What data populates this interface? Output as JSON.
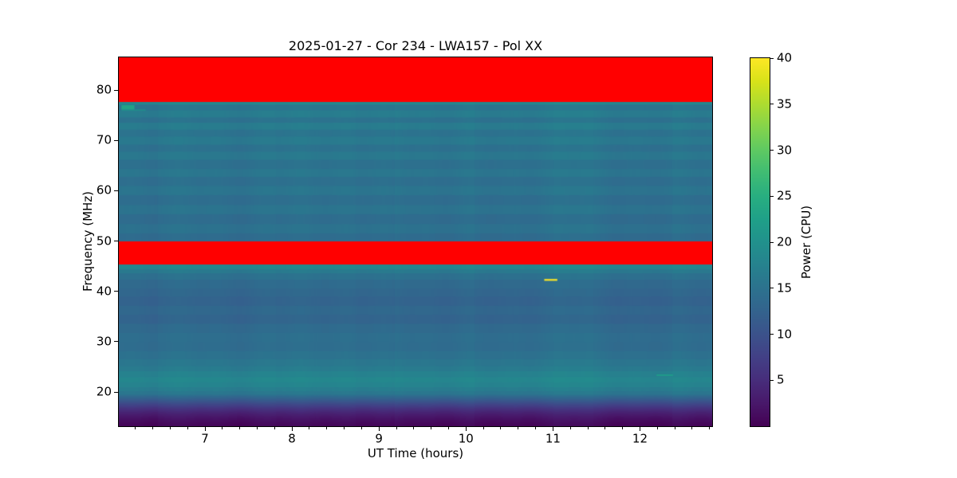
{
  "figure": {
    "background": "#ffffff"
  },
  "chart_data": {
    "type": "heatmap",
    "title": "2025-01-27 - Cor 234 - LWA157 - Pol XX",
    "xlabel": "UT Time (hours)",
    "ylabel": "Frequency (MHz)",
    "x_unit": "hours",
    "y_unit": "MHz",
    "x_range": [
      6.01,
      12.83
    ],
    "y_range": [
      13.2,
      86.5
    ],
    "x_major_ticks": [
      7,
      8,
      9,
      10,
      11,
      12
    ],
    "x_minor_tick_step": 0.2,
    "y_major_ticks": [
      20,
      30,
      40,
      50,
      60,
      70,
      80
    ],
    "grid": false,
    "legend": "none",
    "colorbar": {
      "label": "Power (CPU)",
      "ticks": [
        5,
        10,
        15,
        20,
        25,
        30,
        35,
        40
      ],
      "vmin": 0,
      "vmax": 40,
      "colormap": "viridis",
      "stops": [
        "#440154",
        "#48186a",
        "#472d7b",
        "#424086",
        "#3b528b",
        "#33638d",
        "#2c728e",
        "#26828e",
        "#21918c",
        "#1fa088",
        "#28ae80",
        "#3fbc73",
        "#5ec962",
        "#84d44b",
        "#addc30",
        "#d8e219",
        "#fde725"
      ]
    },
    "saturated_color": "#ff0000",
    "saturated_bands_mhz": [
      [
        77.6,
        86.5
      ],
      [
        45.3,
        50.0
      ]
    ],
    "background_profile_freq_power": [
      [
        86.5,
        16.0
      ],
      [
        77.65,
        18.5
      ],
      [
        77.15,
        18.5
      ],
      [
        77.05,
        15.6
      ],
      [
        76.0,
        15.6
      ],
      [
        75.9,
        16.6
      ],
      [
        74.6,
        16.6
      ],
      [
        74.5,
        15.0
      ],
      [
        73.6,
        15.0
      ],
      [
        73.5,
        16.6
      ],
      [
        72.2,
        16.6
      ],
      [
        72.1,
        15.2
      ],
      [
        70.8,
        15.2
      ],
      [
        70.7,
        16.2
      ],
      [
        69.2,
        16.2
      ],
      [
        69.1,
        14.9
      ],
      [
        67.8,
        14.9
      ],
      [
        67.7,
        16.0
      ],
      [
        66.2,
        16.0
      ],
      [
        66.1,
        14.8
      ],
      [
        64.4,
        14.8
      ],
      [
        64.3,
        15.7
      ],
      [
        62.8,
        15.7
      ],
      [
        62.7,
        14.5
      ],
      [
        61.0,
        14.5
      ],
      [
        60.9,
        15.5
      ],
      [
        59.2,
        15.5
      ],
      [
        59.1,
        14.3
      ],
      [
        57.2,
        14.3
      ],
      [
        57.1,
        15.3
      ],
      [
        55.4,
        15.3
      ],
      [
        55.3,
        14.1
      ],
      [
        53.4,
        14.1
      ],
      [
        53.3,
        15.0
      ],
      [
        51.6,
        15.0
      ],
      [
        51.5,
        14.0
      ],
      [
        50.1,
        14.0
      ],
      [
        45.25,
        18.2
      ],
      [
        44.4,
        18.2
      ],
      [
        44.3,
        16.2
      ],
      [
        43.6,
        16.2
      ],
      [
        43.5,
        14.8
      ],
      [
        42.4,
        14.8
      ],
      [
        42.3,
        13.8
      ],
      [
        40.6,
        13.8
      ],
      [
        40.5,
        13.2
      ],
      [
        39.0,
        13.2
      ],
      [
        38.9,
        12.6
      ],
      [
        37.2,
        12.6
      ],
      [
        37.1,
        13.4
      ],
      [
        35.4,
        13.4
      ],
      [
        35.3,
        12.8
      ],
      [
        33.6,
        12.8
      ],
      [
        33.5,
        13.8
      ],
      [
        31.8,
        13.8
      ],
      [
        31.7,
        14.4
      ],
      [
        30.0,
        14.4
      ],
      [
        29.9,
        14.2
      ],
      [
        28.2,
        14.2
      ],
      [
        28.1,
        15.0
      ],
      [
        26.6,
        15.0
      ],
      [
        26.5,
        15.8
      ],
      [
        25.2,
        15.8
      ],
      [
        25.1,
        16.5
      ],
      [
        24.2,
        16.5
      ],
      [
        24.1,
        17.6
      ],
      [
        23.0,
        17.6
      ],
      [
        22.9,
        18.4
      ],
      [
        22.0,
        18.4
      ],
      [
        21.9,
        17.8
      ],
      [
        21.0,
        17.8
      ],
      [
        20.9,
        16.8
      ],
      [
        20.2,
        16.8
      ],
      [
        20.1,
        15.8
      ],
      [
        19.6,
        15.8
      ],
      [
        19.2,
        14.0
      ],
      [
        18.6,
        12.0
      ],
      [
        18.0,
        10.0
      ],
      [
        17.4,
        8.0
      ],
      [
        16.8,
        6.2
      ],
      [
        16.2,
        4.6
      ],
      [
        15.6,
        3.4
      ],
      [
        15.0,
        2.4
      ],
      [
        14.4,
        1.6
      ],
      [
        13.8,
        1.0
      ],
      [
        13.2,
        0.6
      ]
    ],
    "features": [
      {
        "name": "teal-burst",
        "t": [
          6.04,
          6.19
        ],
        "f": [
          76.1,
          77.0
        ],
        "power": 23.0
      },
      {
        "name": "narrowband-line",
        "t": [
          6.04,
          6.32
        ],
        "f": [
          75.9,
          76.15
        ],
        "power": 19.5
      },
      {
        "name": "yellow-burst",
        "t": [
          10.9,
          11.05
        ],
        "f": [
          42.1,
          42.45
        ],
        "power": 40.0
      },
      {
        "name": "faint-green-line",
        "t": [
          12.19,
          12.38
        ],
        "f": [
          23.2,
          23.5
        ],
        "power": 22.0
      }
    ],
    "column_noise": {
      "amplitude_cpu": 0.8
    }
  }
}
